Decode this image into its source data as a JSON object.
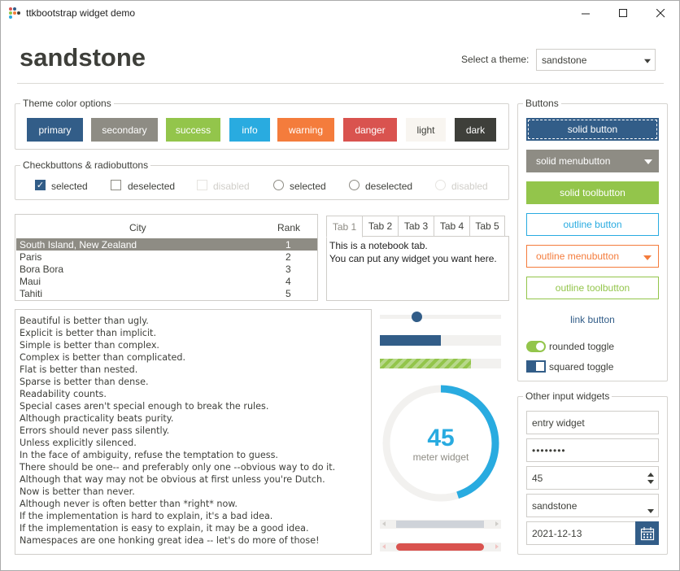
{
  "window": {
    "title": "ttkbootstrap widget demo",
    "minimize_icon": "minimize-icon",
    "maximize_icon": "maximize-icon",
    "close_icon": "close-icon"
  },
  "header": {
    "title": "sandstone",
    "theme_label": "Select a theme:",
    "theme_value": "sandstone"
  },
  "theme_colors": {
    "title": "Theme color options",
    "buttons": [
      {
        "label": "primary",
        "color": "#325d88"
      },
      {
        "label": "secondary",
        "color": "#8e8c84"
      },
      {
        "label": "success",
        "color": "#93c54b"
      },
      {
        "label": "info",
        "color": "#29abe0"
      },
      {
        "label": "warning",
        "color": "#f47c3c"
      },
      {
        "label": "danger",
        "color": "#d9534f"
      },
      {
        "label": "light",
        "color": "#f8f5f0"
      },
      {
        "label": "dark",
        "color": "#3e3f3a"
      }
    ]
  },
  "checks": {
    "title": "Checkbuttons & radiobuttons",
    "items": [
      "selected",
      "deselected",
      "disabled",
      "selected",
      "deselected",
      "disabled"
    ]
  },
  "table": {
    "columns": [
      "City",
      "Rank"
    ],
    "rows": [
      [
        "South Island, New Zealand",
        "1"
      ],
      [
        "Paris",
        "2"
      ],
      [
        "Bora Bora",
        "3"
      ],
      [
        "Maui",
        "4"
      ],
      [
        "Tahiti",
        "5"
      ]
    ]
  },
  "notebook": {
    "tabs": [
      "Tab 1",
      "Tab 2",
      "Tab 3",
      "Tab 4",
      "Tab 5"
    ],
    "lines": [
      "This is a notebook tab.",
      "You can put any widget you want here."
    ]
  },
  "zen": [
    "Beautiful is better than ugly.",
    "Explicit is better than implicit.",
    "Simple is better than complex.",
    "Complex is better than complicated.",
    "Flat is better than nested.",
    "Sparse is better than dense.",
    "Readability counts.",
    "Special cases aren't special enough to break the rules.",
    "Although practicality beats purity.",
    "Errors should never pass silently.",
    "Unless explicitly silenced.",
    "In the face of ambiguity, refuse the temptation to guess.",
    "There should be one-- and preferably only one --obvious way to do it.",
    "Although that way may not be obvious at first unless you're Dutch.",
    "Now is better than never.",
    "Although never is often better than *right* now.",
    "If the implementation is hard to explain, it's a bad idea.",
    "If the implementation is easy to explain, it may be a good idea.",
    "Namespaces are one honking great idea -- let's do more of those!"
  ],
  "widgets": {
    "scale_value": 0.27,
    "progress_value": 0.5,
    "striped_value": 0.75,
    "meter_value": "45",
    "meter_label": "meter widget",
    "meter_fraction": 0.45
  },
  "buttons": {
    "title": "Buttons",
    "solid_button": "solid button",
    "solid_menubutton": "solid menubutton",
    "solid_toolbutton": "solid toolbutton",
    "outline_button": "outline button",
    "outline_menubutton": "outline menubutton",
    "outline_toolbutton": "outline toolbutton",
    "link_button": "link button",
    "rounded_toggle": "rounded toggle",
    "squared_toggle": "squared toggle"
  },
  "inputs": {
    "title": "Other input widgets",
    "entry": "entry widget",
    "password": "••••••••",
    "spinbox": "45",
    "combo": "sandstone",
    "date": "2021-12-13",
    "calendar_icon": "calendar-icon"
  }
}
